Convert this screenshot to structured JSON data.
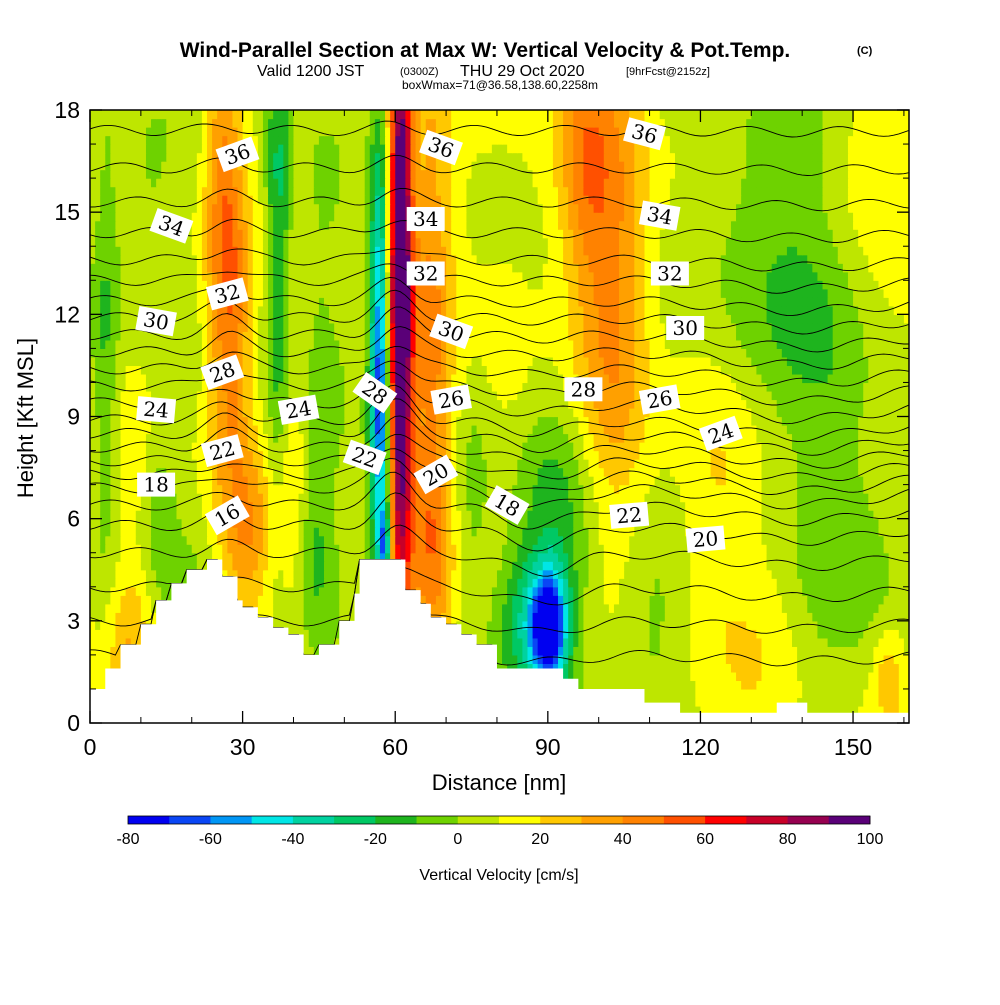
{
  "header": {
    "title": "Wind-Parallel Section at Max W: Vertical Velocity & Pot.Temp.",
    "copyright": "(C)",
    "valid_prefix": "Valid 1200 JST",
    "valid_utc": "(0300Z)",
    "valid_date": "THU 29 Oct 2020",
    "forecast": "[9hrFcst@2152z]",
    "box_info": "boxWmax=71@36.58,138.60,2258m"
  },
  "chart_data": {
    "type": "heatmap",
    "xlabel": "Distance [nm]",
    "ylabel": "Height [Kft MSL]",
    "xlim": [
      0,
      161
    ],
    "ylim": [
      0,
      18
    ],
    "xticks": [
      "0",
      "30",
      "60",
      "90",
      "120",
      "150"
    ],
    "yticks": [
      "0",
      "3",
      "6",
      "9",
      "12",
      "15",
      "18"
    ],
    "terrain_kft": [
      [
        0,
        1.0
      ],
      [
        3,
        1.0
      ],
      [
        3,
        1.6
      ],
      [
        6,
        1.6
      ],
      [
        6,
        2.3
      ],
      [
        10,
        2.3
      ],
      [
        10,
        2.9
      ],
      [
        13,
        2.9
      ],
      [
        13,
        3.6
      ],
      [
        16,
        3.6
      ],
      [
        16,
        4.1
      ],
      [
        19,
        4.1
      ],
      [
        19,
        4.5
      ],
      [
        23,
        4.5
      ],
      [
        23,
        4.8
      ],
      [
        26,
        4.8
      ],
      [
        26,
        4.3
      ],
      [
        29,
        4.3
      ],
      [
        29,
        3.6
      ],
      [
        30,
        3.6
      ],
      [
        30,
        3.4
      ],
      [
        33,
        3.4
      ],
      [
        33,
        3.1
      ],
      [
        36,
        3.1
      ],
      [
        36,
        2.8
      ],
      [
        39,
        2.8
      ],
      [
        39,
        2.6
      ],
      [
        42,
        2.6
      ],
      [
        42,
        2.0
      ],
      [
        45,
        2.0
      ],
      [
        45,
        2.3
      ],
      [
        49,
        2.3
      ],
      [
        49,
        3.0
      ],
      [
        52,
        3.0
      ],
      [
        52,
        3.8
      ],
      [
        53,
        3.8
      ],
      [
        53,
        4.8
      ],
      [
        62,
        4.8
      ],
      [
        62,
        3.9
      ],
      [
        65,
        3.9
      ],
      [
        65,
        3.5
      ],
      [
        67,
        3.5
      ],
      [
        67,
        3.1
      ],
      [
        70,
        3.1
      ],
      [
        70,
        2.9
      ],
      [
        73,
        2.9
      ],
      [
        73,
        2.6
      ],
      [
        76,
        2.6
      ],
      [
        76,
        2.3
      ],
      [
        80,
        2.3
      ],
      [
        80,
        1.6
      ],
      [
        93,
        1.6
      ],
      [
        93,
        1.3
      ],
      [
        96,
        1.3
      ],
      [
        96,
        1.0
      ],
      [
        109,
        1.0
      ],
      [
        109,
        0.6
      ],
      [
        116,
        0.6
      ],
      [
        116,
        0.3
      ],
      [
        135,
        0.3
      ],
      [
        135,
        0.6
      ],
      [
        141,
        0.6
      ],
      [
        141,
        0.3
      ],
      [
        161,
        0.3
      ]
    ],
    "colorbar": {
      "label": "Vertical Velocity [cm/s]",
      "ticks": [
        "-80",
        "-60",
        "-40",
        "-20",
        "0",
        "20",
        "40",
        "60",
        "80",
        "100"
      ],
      "colors": [
        "#0000f0",
        "#0a46f5",
        "#0096f5",
        "#00e6e6",
        "#00d2a0",
        "#00c864",
        "#1eb41e",
        "#6ed200",
        "#bee600",
        "#ffff00",
        "#ffc800",
        "#ffa000",
        "#ff8200",
        "#ff5000",
        "#ff0000",
        "#c80028",
        "#960050",
        "#5a0078"
      ]
    },
    "w_features": [
      {
        "x": 61,
        "y": 12.5,
        "sx": 1.6,
        "sy": 6.5,
        "amp": 110
      },
      {
        "x": 57,
        "y": 10.0,
        "sx": 1.4,
        "sy": 4.8,
        "amp": -75
      },
      {
        "x": 58,
        "y": 5.2,
        "sx": 0.8,
        "sy": 0.8,
        "amp": -45
      },
      {
        "x": 67,
        "y": 11.5,
        "sx": 3.0,
        "sy": 5.5,
        "amp": 28
      },
      {
        "x": 90,
        "y": 2.8,
        "sx": 2.5,
        "sy": 1.2,
        "amp": -90
      },
      {
        "x": 92,
        "y": 4.8,
        "sx": 6.0,
        "sy": 3.5,
        "amp": -30
      },
      {
        "x": 84,
        "y": 3.0,
        "sx": 3.0,
        "sy": 1.6,
        "amp": -22
      },
      {
        "x": 103,
        "y": 13.0,
        "sx": 5.0,
        "sy": 5.5,
        "amp": 32
      },
      {
        "x": 97,
        "y": 16.5,
        "sx": 3.5,
        "sy": 2.5,
        "amp": 22
      },
      {
        "x": 26,
        "y": 14.5,
        "sx": 2.5,
        "sy": 5.5,
        "amp": 38
      },
      {
        "x": 29,
        "y": 11.5,
        "sx": 2.0,
        "sy": 3.5,
        "amp": 20
      },
      {
        "x": 37,
        "y": 14.0,
        "sx": 1.8,
        "sy": 6.5,
        "amp": -35
      },
      {
        "x": 31,
        "y": 5.5,
        "sx": 3.0,
        "sy": 1.8,
        "amp": 26
      },
      {
        "x": 39,
        "y": 7.0,
        "sx": 2.5,
        "sy": 3.0,
        "amp": 15
      },
      {
        "x": 44,
        "y": 5.0,
        "sx": 3.0,
        "sy": 2.0,
        "amp": -20
      },
      {
        "x": 45,
        "y": 12.0,
        "sx": 3.5,
        "sy": 5.0,
        "amp": -12
      },
      {
        "x": 67,
        "y": 5.0,
        "sx": 3.0,
        "sy": 2.5,
        "amp": 20
      },
      {
        "x": 75,
        "y": 6.0,
        "sx": 3.0,
        "sy": 3.5,
        "amp": -14
      },
      {
        "x": 3,
        "y": 11.0,
        "sx": 2.0,
        "sy": 5.0,
        "amp": -20
      },
      {
        "x": 11,
        "y": 15.5,
        "sx": 5.0,
        "sy": 2.5,
        "amp": -15
      },
      {
        "x": 14,
        "y": 6.0,
        "sx": 2.5,
        "sy": 2.0,
        "amp": -18
      },
      {
        "x": 8,
        "y": 2.5,
        "sx": 3.0,
        "sy": 1.5,
        "amp": 15
      },
      {
        "x": 20,
        "y": 3.0,
        "sx": 2.5,
        "sy": 2.0,
        "amp": -8
      },
      {
        "x": 140,
        "y": 13.0,
        "sx": 10.0,
        "sy": 4.0,
        "amp": -18
      },
      {
        "x": 152,
        "y": 5.0,
        "sx": 8.0,
        "sy": 3.0,
        "amp": -15
      },
      {
        "x": 122,
        "y": 6.5,
        "sx": 6.0,
        "sy": 3.0,
        "amp": 10
      },
      {
        "x": 128,
        "y": 15.0,
        "sx": 6.0,
        "sy": 3.5,
        "amp": -10
      },
      {
        "x": 110,
        "y": 3.0,
        "sx": 6.0,
        "sy": 2.0,
        "amp": -12
      },
      {
        "x": 134,
        "y": 2.5,
        "sx": 5.0,
        "sy": 2.0,
        "amp": 6
      },
      {
        "x": 157,
        "y": 1.5,
        "sx": 2.0,
        "sy": 1.0,
        "amp": 18
      },
      {
        "x": 82,
        "y": 9.5,
        "sx": 5.0,
        "sy": 5.0,
        "amp": 8
      },
      {
        "x": 150,
        "y": 16.5,
        "sx": 6.0,
        "sy": 2.0,
        "amp": 10
      }
    ],
    "theta_levels": [
      14,
      15,
      16,
      17,
      18,
      19,
      20,
      21,
      22,
      23,
      24,
      25,
      26,
      27,
      28,
      29,
      30,
      31,
      32,
      33,
      34,
      35,
      36,
      37,
      38
    ],
    "theta_base_heights": [
      [
        14,
        2.0
      ],
      [
        15,
        3.0
      ],
      [
        16,
        4.0
      ],
      [
        17,
        5.0
      ],
      [
        18,
        5.8
      ],
      [
        19,
        6.4
      ],
      [
        20,
        6.9
      ],
      [
        21,
        7.3
      ],
      [
        22,
        7.7
      ],
      [
        23,
        8.1
      ],
      [
        24,
        8.5
      ],
      [
        25,
        8.9
      ],
      [
        26,
        9.4
      ],
      [
        27,
        9.9
      ],
      [
        28,
        10.4
      ],
      [
        29,
        10.9
      ],
      [
        30,
        11.4
      ],
      [
        31,
        11.9
      ],
      [
        32,
        12.4
      ],
      [
        33,
        13.0
      ],
      [
        34,
        13.6
      ],
      [
        35,
        14.4
      ],
      [
        36,
        15.3
      ],
      [
        37,
        16.3
      ],
      [
        38,
        17.4
      ]
    ],
    "theta_labels": [
      {
        "text": "36",
        "x": 29,
        "y": 16.7,
        "angle": -20
      },
      {
        "text": "36",
        "x": 69,
        "y": 16.9,
        "angle": 20
      },
      {
        "text": "36",
        "x": 109,
        "y": 17.3,
        "angle": 15
      },
      {
        "text": "34",
        "x": 16,
        "y": 14.6,
        "angle": 20
      },
      {
        "text": "34",
        "x": 66,
        "y": 14.8,
        "angle": 0
      },
      {
        "text": "34",
        "x": 112,
        "y": 14.9,
        "angle": 10
      },
      {
        "text": "32",
        "x": 27,
        "y": 12.6,
        "angle": -15
      },
      {
        "text": "32",
        "x": 66,
        "y": 13.2,
        "angle": 0
      },
      {
        "text": "32",
        "x": 114,
        "y": 13.2,
        "angle": 0
      },
      {
        "text": "30",
        "x": 13,
        "y": 11.8,
        "angle": 10
      },
      {
        "text": "30",
        "x": 71,
        "y": 11.5,
        "angle": 20
      },
      {
        "text": "30",
        "x": 117,
        "y": 11.6,
        "angle": 0
      },
      {
        "text": "28",
        "x": 26,
        "y": 10.3,
        "angle": -20
      },
      {
        "text": "28",
        "x": 56,
        "y": 9.7,
        "angle": 35
      },
      {
        "text": "28",
        "x": 97,
        "y": 9.8,
        "angle": 0
      },
      {
        "text": "26",
        "x": 71,
        "y": 9.5,
        "angle": -10
      },
      {
        "text": "26",
        "x": 112,
        "y": 9.5,
        "angle": -10
      },
      {
        "text": "24",
        "x": 13,
        "y": 9.2,
        "angle": 5
      },
      {
        "text": "24",
        "x": 41,
        "y": 9.2,
        "angle": -10
      },
      {
        "text": "24",
        "x": 124,
        "y": 8.5,
        "angle": -20
      },
      {
        "text": "22",
        "x": 26,
        "y": 8.0,
        "angle": -15
      },
      {
        "text": "22",
        "x": 54,
        "y": 7.8,
        "angle": 20
      },
      {
        "text": "22",
        "x": 106,
        "y": 6.1,
        "angle": -5
      },
      {
        "text": "20",
        "x": 68,
        "y": 7.3,
        "angle": -30
      },
      {
        "text": "20",
        "x": 121,
        "y": 5.4,
        "angle": -5
      },
      {
        "text": "18",
        "x": 13,
        "y": 7.0,
        "angle": 0
      },
      {
        "text": "18",
        "x": 82,
        "y": 6.4,
        "angle": 30
      },
      {
        "text": "16",
        "x": 27,
        "y": 6.1,
        "angle": -30
      }
    ]
  }
}
